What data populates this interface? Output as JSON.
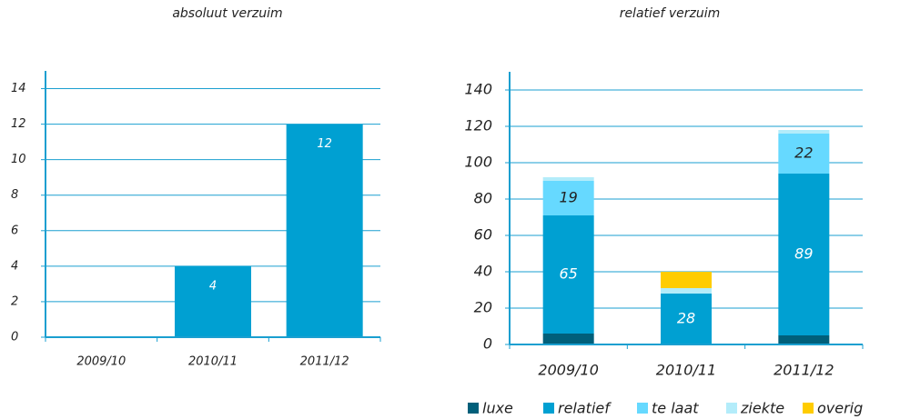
{
  "chart_data": [
    {
      "type": "bar",
      "title": "absoluut verzuim",
      "categories": [
        "2009/10",
        "2010/11",
        "2011/12"
      ],
      "values": [
        0,
        4,
        12
      ],
      "color": "#00a0d2",
      "ylim": [
        0,
        15
      ],
      "yticks": [
        0,
        2,
        4,
        6,
        8,
        10,
        12,
        14
      ],
      "grid": true
    },
    {
      "type": "stacked_bar",
      "title": "relatief verzuim",
      "categories": [
        "2009/10",
        "2010/11",
        "2011/12"
      ],
      "series": [
        {
          "name": "luxe",
          "color": "#005f7a",
          "values": [
            6,
            0,
            5
          ]
        },
        {
          "name": "relatief",
          "color": "#00a0d2",
          "values": [
            65,
            28,
            89
          ]
        },
        {
          "name": "te laat",
          "color": "#66d9ff",
          "values": [
            19,
            0,
            22
          ]
        },
        {
          "name": "ziekte",
          "color": "#b3ecfa",
          "values": [
            2,
            3,
            2
          ]
        },
        {
          "name": "overig",
          "color": "#ffcc00",
          "values": [
            0,
            9,
            0
          ]
        }
      ],
      "ylim": [
        0,
        150
      ],
      "yticks": [
        0,
        20,
        40,
        60,
        80,
        100,
        120,
        140
      ],
      "grid": true,
      "legend": "bottom"
    }
  ]
}
